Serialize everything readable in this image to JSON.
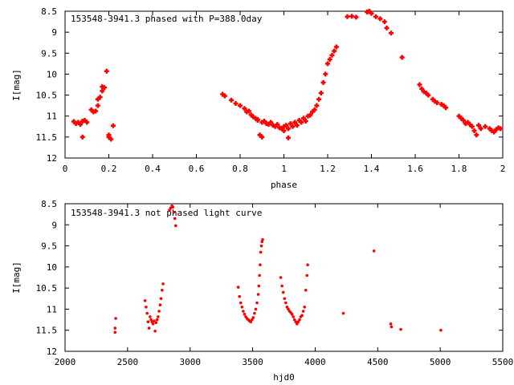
{
  "colors": {
    "series": "#ff0000",
    "axes": "#000000",
    "background": "#ffffff"
  },
  "chart_data": [
    {
      "type": "scatter",
      "title": "153548-3941.3 phased with P=388.0day",
      "xlabel": "phase",
      "ylabel": "I[mag]",
      "xlim": [
        0,
        2
      ],
      "ylim": [
        12,
        8.5
      ],
      "y_inverted": true,
      "grid": false,
      "xticks": [
        0,
        0.2,
        0.4,
        0.6,
        0.8,
        1,
        1.2,
        1.4,
        1.6,
        1.8,
        2
      ],
      "xtick_labels": [
        "0",
        "0.2",
        "0.4",
        "0.6",
        "0.8",
        "1",
        "1.2",
        "1.4",
        "1.6",
        "1.8",
        "2"
      ],
      "yticks": [
        8.5,
        9,
        9.5,
        10,
        10.5,
        11,
        11.5,
        12
      ],
      "ytick_labels": [
        "8.5",
        "9",
        "9.5",
        "10",
        "10.5",
        "11",
        "11.5",
        "12"
      ],
      "marker": "plus",
      "series": [
        {
          "points": [
            [
              0.04,
              11.13
            ],
            [
              0.05,
              11.18
            ],
            [
              0.06,
              11.15
            ],
            [
              0.07,
              11.2
            ],
            [
              0.08,
              11.12
            ],
            [
              0.08,
              11.5
            ],
            [
              0.09,
              11.1
            ],
            [
              0.1,
              11.15
            ],
            [
              0.12,
              10.85
            ],
            [
              0.13,
              10.9
            ],
            [
              0.14,
              10.88
            ],
            [
              0.15,
              10.75
            ],
            [
              0.15,
              10.6
            ],
            [
              0.16,
              10.55
            ],
            [
              0.17,
              10.4
            ],
            [
              0.17,
              10.3
            ],
            [
              0.18,
              10.32
            ],
            [
              0.19,
              9.93
            ],
            [
              0.2,
              11.5
            ],
            [
              0.2,
              11.45
            ],
            [
              0.21,
              11.55
            ],
            [
              0.22,
              11.23
            ],
            [
              0.72,
              10.48
            ],
            [
              0.73,
              10.52
            ],
            [
              0.76,
              10.62
            ],
            [
              0.78,
              10.7
            ],
            [
              0.8,
              10.75
            ],
            [
              0.82,
              10.82
            ],
            [
              0.83,
              10.9
            ],
            [
              0.84,
              10.88
            ],
            [
              0.85,
              10.97
            ],
            [
              0.86,
              11.02
            ],
            [
              0.87,
              11.05
            ],
            [
              0.88,
              11.1
            ],
            [
              0.88,
              11.08
            ],
            [
              0.89,
              11.45
            ],
            [
              0.9,
              11.15
            ],
            [
              0.9,
              11.5
            ],
            [
              0.91,
              11.12
            ],
            [
              0.92,
              11.18
            ],
            [
              0.93,
              11.2
            ],
            [
              0.94,
              11.15
            ],
            [
              0.95,
              11.22
            ],
            [
              0.96,
              11.25
            ],
            [
              0.97,
              11.2
            ],
            [
              0.98,
              11.28
            ],
            [
              0.99,
              11.3
            ],
            [
              1.0,
              11.25
            ],
            [
              1.0,
              11.35
            ],
            [
              1.01,
              11.22
            ],
            [
              1.02,
              11.3
            ],
            [
              1.02,
              11.52
            ],
            [
              1.03,
              11.18
            ],
            [
              1.04,
              11.25
            ],
            [
              1.05,
              11.15
            ],
            [
              1.06,
              11.22
            ],
            [
              1.07,
              11.1
            ],
            [
              1.08,
              11.15
            ],
            [
              1.09,
              11.05
            ],
            [
              1.1,
              11.12
            ],
            [
              1.11,
              11.0
            ],
            [
              1.12,
              10.98
            ],
            [
              1.13,
              10.9
            ],
            [
              1.14,
              10.85
            ],
            [
              1.15,
              10.75
            ],
            [
              1.16,
              10.6
            ],
            [
              1.17,
              10.45
            ],
            [
              1.18,
              10.2
            ],
            [
              1.19,
              10.0
            ],
            [
              1.2,
              9.75
            ],
            [
              1.21,
              9.65
            ],
            [
              1.22,
              9.55
            ],
            [
              1.23,
              9.45
            ],
            [
              1.24,
              9.35
            ],
            [
              1.29,
              8.63
            ],
            [
              1.31,
              8.62
            ],
            [
              1.33,
              8.64
            ],
            [
              1.38,
              8.52
            ],
            [
              1.39,
              8.5
            ],
            [
              1.4,
              8.55
            ],
            [
              1.42,
              8.63
            ],
            [
              1.44,
              8.68
            ],
            [
              1.46,
              8.75
            ],
            [
              1.47,
              8.9
            ],
            [
              1.49,
              9.02
            ],
            [
              1.54,
              9.6
            ],
            [
              1.62,
              10.25
            ],
            [
              1.63,
              10.35
            ],
            [
              1.64,
              10.42
            ],
            [
              1.65,
              10.45
            ],
            [
              1.66,
              10.5
            ],
            [
              1.68,
              10.6
            ],
            [
              1.69,
              10.65
            ],
            [
              1.7,
              10.68
            ],
            [
              1.72,
              10.72
            ],
            [
              1.73,
              10.75
            ],
            [
              1.74,
              10.8
            ],
            [
              1.8,
              11.0
            ],
            [
              1.81,
              11.05
            ],
            [
              1.82,
              11.1
            ],
            [
              1.83,
              11.18
            ],
            [
              1.84,
              11.15
            ],
            [
              1.85,
              11.2
            ],
            [
              1.86,
              11.25
            ],
            [
              1.87,
              11.35
            ],
            [
              1.88,
              11.45
            ],
            [
              1.89,
              11.22
            ],
            [
              1.9,
              11.3
            ],
            [
              1.92,
              11.25
            ],
            [
              1.94,
              11.3
            ],
            [
              1.95,
              11.35
            ],
            [
              1.96,
              11.38
            ],
            [
              1.97,
              11.32
            ],
            [
              1.98,
              11.28
            ],
            [
              1.99,
              11.3
            ]
          ]
        }
      ]
    },
    {
      "type": "scatter",
      "title": "153548-3941.3 not phased light curve",
      "xlabel": "hjd0",
      "ylabel": "I[mag]",
      "xlim": [
        2000,
        5500
      ],
      "ylim": [
        12,
        8.5
      ],
      "y_inverted": true,
      "grid": false,
      "xticks": [
        2000,
        2500,
        3000,
        3500,
        4000,
        4500,
        5000,
        5500
      ],
      "xtick_labels": [
        "2000",
        "2500",
        "3000",
        "3500",
        "4000",
        "4500",
        "5000",
        "5500"
      ],
      "yticks": [
        8.5,
        9,
        9.5,
        10,
        10.5,
        11,
        11.5,
        12
      ],
      "ytick_labels": [
        "8.5",
        "9",
        "9.5",
        "10",
        "10.5",
        "11",
        "11.5",
        "12"
      ],
      "marker": "dot",
      "series": [
        {
          "points": [
            [
              2400,
              11.55
            ],
            [
              2400,
              11.45
            ],
            [
              2405,
              11.22
            ],
            [
              2640,
              10.8
            ],
            [
              2648,
              10.95
            ],
            [
              2656,
              11.1
            ],
            [
              2664,
              11.3
            ],
            [
              2672,
              11.45
            ],
            [
              2680,
              11.18
            ],
            [
              2688,
              11.25
            ],
            [
              2696,
              11.3
            ],
            [
              2704,
              11.35
            ],
            [
              2712,
              11.28
            ],
            [
              2720,
              11.52
            ],
            [
              2728,
              11.32
            ],
            [
              2736,
              11.25
            ],
            [
              2744,
              11.18
            ],
            [
              2752,
              11.05
            ],
            [
              2760,
              10.9
            ],
            [
              2768,
              10.75
            ],
            [
              2776,
              10.55
            ],
            [
              2784,
              10.4
            ],
            [
              2835,
              8.65
            ],
            [
              2845,
              8.6
            ],
            [
              2855,
              8.55
            ],
            [
              2862,
              8.58
            ],
            [
              2870,
              8.7
            ],
            [
              2878,
              8.85
            ],
            [
              2885,
              9.02
            ],
            [
              3385,
              10.48
            ],
            [
              3395,
              10.7
            ],
            [
              3405,
              10.85
            ],
            [
              3415,
              10.95
            ],
            [
              3425,
              11.05
            ],
            [
              3435,
              11.12
            ],
            [
              3445,
              11.18
            ],
            [
              3455,
              11.22
            ],
            [
              3465,
              11.25
            ],
            [
              3475,
              11.28
            ],
            [
              3485,
              11.3
            ],
            [
              3495,
              11.25
            ],
            [
              3505,
              11.2
            ],
            [
              3515,
              11.1
            ],
            [
              3525,
              11.0
            ],
            [
              3535,
              10.85
            ],
            [
              3545,
              10.65
            ],
            [
              3550,
              10.45
            ],
            [
              3555,
              10.2
            ],
            [
              3560,
              9.95
            ],
            [
              3565,
              9.65
            ],
            [
              3570,
              9.5
            ],
            [
              3575,
              9.4
            ],
            [
              3580,
              9.35
            ],
            [
              3725,
              10.25
            ],
            [
              3735,
              10.45
            ],
            [
              3745,
              10.6
            ],
            [
              3755,
              10.75
            ],
            [
              3765,
              10.85
            ],
            [
              3775,
              10.95
            ],
            [
              3785,
              11.0
            ],
            [
              3795,
              11.05
            ],
            [
              3805,
              11.08
            ],
            [
              3815,
              11.12
            ],
            [
              3825,
              11.18
            ],
            [
              3835,
              11.25
            ],
            [
              3845,
              11.3
            ],
            [
              3855,
              11.35
            ],
            [
              3865,
              11.3
            ],
            [
              3875,
              11.25
            ],
            [
              3885,
              11.18
            ],
            [
              3895,
              11.15
            ],
            [
              3905,
              11.05
            ],
            [
              3915,
              10.95
            ],
            [
              3925,
              10.55
            ],
            [
              3935,
              10.2
            ],
            [
              3940,
              9.95
            ],
            [
              4225,
              11.1
            ],
            [
              4470,
              9.62
            ],
            [
              4605,
              11.35
            ],
            [
              4610,
              11.42
            ],
            [
              4685,
              11.48
            ],
            [
              5005,
              11.5
            ]
          ]
        }
      ]
    }
  ]
}
